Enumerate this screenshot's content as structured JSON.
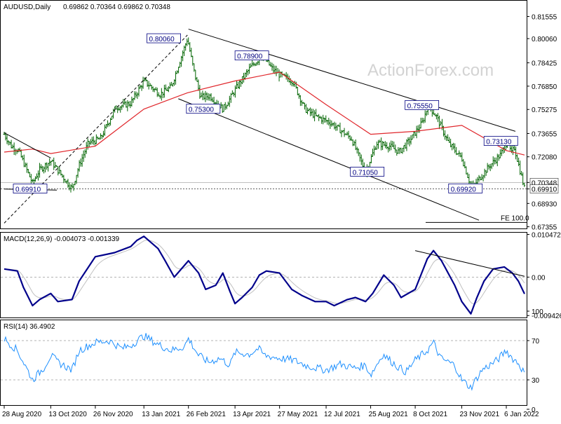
{
  "window": {
    "symbol_label": "AUDUSD,Daily",
    "ohlc_label": "0.69862 0.70364 0.69862 0.70348",
    "watermark": "ActionForex.com"
  },
  "colors": {
    "price_bar": "#006400",
    "ma_line": "#e0262b",
    "macd_line": "#00008b",
    "signal_line": "#c0c0c0",
    "rsi_line": "#1e90ff",
    "annotation_text": "#000080",
    "trendline": "#000000",
    "watermark": "#d3d3d3"
  },
  "chart_data": [
    {
      "type": "line",
      "panel": "price",
      "title": "AUDUSD,Daily",
      "subtitle": "0.69862 0.70364 0.69862 0.70348",
      "ylim": [
        0.6724,
        0.8262
      ],
      "y_ticks": [
        "0.81555",
        "0.80060",
        "0.78425",
        "0.76850",
        "0.75275",
        "0.73655",
        "0.72080",
        "0.70348",
        "0.69910",
        "0.68930",
        "0.67355"
      ],
      "highlight_ticks": [
        "0.70348",
        "0.69910"
      ],
      "x_ticks": [
        "28 Aug 2020",
        "13 Oct 2020",
        "26 Nov 2020",
        "13 Jan 2021",
        "26 Feb 2021",
        "13 Apr 2021",
        "27 May 2021",
        "12 Jul 2021",
        "25 Aug 2021",
        "8 Oct 2021",
        "23 Nov 2021",
        "6 Jan 2022"
      ],
      "price_anchors": {
        "x": [
          "28 Aug 2020",
          "4 Sep 2020",
          "11 Sep 2020",
          "25 Sep 2020",
          "2 Oct 2020",
          "13 Oct 2020",
          "3 Nov 2020",
          "10 Nov 2020",
          "19 Nov 2020",
          "1 Dec 2020",
          "16 Dec 2020",
          "31 Dec 2020",
          "13 Jan 2021",
          "29 Jan 2021",
          "9 Feb 2021",
          "25 Feb 2021",
          "3 Mar 2021",
          "10 Mar 2021",
          "19 Mar 2021",
          "1 Apr 2021",
          "8 Apr 2021",
          "13 Apr 2021",
          "28 Apr 2021",
          "10 May 2021",
          "20 May 2021",
          "27 May 2021",
          "9 Jun 2021",
          "21 Jun 2021",
          "2 Jul 2021",
          "16 Jul 2021",
          "6 Aug 2021",
          "20 Aug 2021",
          "31 Aug 2021",
          "13 Sep 2021",
          "22 Sep 2021",
          "4 Oct 2021",
          "15 Oct 2021",
          "21 Oct 2021",
          "29 Oct 2021",
          "10 Nov 2021",
          "23 Nov 2021",
          "3 Dec 2021",
          "10 Dec 2021",
          "21 Dec 2021",
          "31 Dec 2021",
          "7 Jan 2022",
          "11 Jan 2022",
          "14 Jan 2022",
          "24 Jan 2022"
        ],
        "y": [
          0.736,
          0.728,
          0.725,
          0.703,
          0.712,
          0.718,
          0.6991,
          0.715,
          0.73,
          0.733,
          0.754,
          0.757,
          0.772,
          0.763,
          0.768,
          0.8006,
          0.78,
          0.761,
          0.762,
          0.753,
          0.76,
          0.766,
          0.781,
          0.789,
          0.78,
          0.776,
          0.772,
          0.753,
          0.748,
          0.744,
          0.733,
          0.7105,
          0.73,
          0.728,
          0.724,
          0.733,
          0.744,
          0.7555,
          0.748,
          0.73,
          0.72,
          0.6992,
          0.706,
          0.715,
          0.722,
          0.7313,
          0.723,
          0.727,
          0.6991
        ]
      },
      "series": [
        {
          "name": "",
          "x": [
            "28 Aug 2020",
            "25 Sep 2020",
            "13 Oct 2020",
            "26 Nov 2020",
            "13 Jan 2021",
            "25 Feb 2021",
            "13 Apr 2021",
            "27 May 2021",
            "12 Jul 2021",
            "25 Aug 2021",
            "8 Oct 2021",
            "23 Nov 2021",
            "6 Jan 2022",
            "24 Jan 2022"
          ],
          "y": [
            0.724,
            0.726,
            0.723,
            0.728,
            0.753,
            0.764,
            0.772,
            0.778,
            0.756,
            0.736,
            0.738,
            0.742,
            0.725,
            0.722
          ]
        }
      ],
      "annotations": [
        "0.80060",
        "0.78900",
        "0.75300",
        "0.71050",
        "0.75550",
        "0.73130",
        "0.69920",
        "0.69910"
      ],
      "fe_label": "FE 100.0"
    },
    {
      "type": "line",
      "panel": "macd",
      "title": "MACD(12,26,9) -0.004073 -0.001339",
      "ylim": [
        -0.0099,
        0.0109
      ],
      "y_ticks": [
        "0.010472",
        "0.00",
        "-0.009426"
      ],
      "series": [
        {
          "name": "",
          "x": [
            "28 Aug 2020",
            "10 Sep 2020",
            "16 Sep 2020",
            "25 Sep 2020",
            "2 Oct 2020",
            "13 Oct 2020",
            "20 Oct 2020",
            "3 Nov 2020",
            "10 Nov 2020",
            "26 Nov 2020",
            "15 Dec 2020",
            "31 Dec 2020",
            "6 Jan 2021",
            "13 Jan 2021",
            "27 Jan 2021",
            "3 Feb 2021",
            "12 Feb 2021",
            "26 Feb 2021",
            "8 Mar 2021",
            "15 Mar 2021",
            "25 Mar 2021",
            "1 Apr 2021",
            "8 Apr 2021",
            "13 Apr 2021",
            "20 Apr 2021",
            "30 Apr 2021",
            "7 May 2021",
            "14 May 2021",
            "27 May 2021",
            "8 Jun 2021",
            "18 Jun 2021",
            "1 Jul 2021",
            "12 Jul 2021",
            "20 Jul 2021",
            "2 Aug 2021",
            "10 Aug 2021",
            "20 Aug 2021",
            "27 Aug 2021",
            "7 Sep 2021",
            "17 Sep 2021",
            "24 Sep 2021",
            "8 Oct 2021",
            "20 Oct 2021",
            "26 Oct 2021",
            "3 Nov 2021",
            "16 Nov 2021",
            "23 Nov 2021",
            "2 Dec 2021",
            "8 Dec 2021",
            "15 Dec 2021",
            "24 Dec 2021",
            "4 Jan 2022",
            "12 Jan 2022",
            "18 Jan 2022",
            "24 Jan 2022"
          ],
          "y": [
            0.002,
            0.0015,
            -0.0025,
            -0.007,
            -0.0055,
            -0.004,
            -0.006,
            -0.0055,
            -0.001,
            0.005,
            0.006,
            0.0075,
            0.009,
            0.01,
            0.007,
            0.004,
            0.0,
            0.004,
            0.001,
            -0.003,
            -0.002,
            0.001,
            -0.0035,
            -0.0065,
            -0.005,
            -0.0025,
            0.0005,
            0.0015,
            0.001,
            -0.003,
            -0.0045,
            -0.006,
            -0.006,
            -0.007,
            -0.0055,
            -0.005,
            -0.006,
            -0.004,
            0.0005,
            -0.002,
            -0.005,
            -0.003,
            0.0045,
            0.0065,
            0.004,
            -0.002,
            -0.006,
            -0.009,
            -0.005,
            -0.001,
            0.002,
            0.0025,
            0.001,
            -0.001,
            -0.0041
          ]
        }
      ]
    },
    {
      "type": "line",
      "panel": "rsi",
      "title": "RSI(14) 36.4902",
      "ylim": [
        0,
        100
      ],
      "y_ticks": [
        "100",
        "70",
        "30",
        "0"
      ],
      "series": [
        {
          "name": "",
          "x": [
            "28 Aug 2020",
            "10 Sep 2020",
            "16 Sep 2020",
            "25 Sep 2020",
            "6 Oct 2020",
            "13 Oct 2020",
            "20 Oct 2020",
            "3 Nov 2020",
            "10 Nov 2020",
            "26 Nov 2020",
            "10 Dec 2020",
            "22 Dec 2020",
            "31 Dec 2020",
            "13 Jan 2021",
            "27 Jan 2021",
            "9 Feb 2021",
            "22 Feb 2021",
            "26 Feb 2021",
            "8 Mar 2021",
            "18 Mar 2021",
            "29 Mar 2021",
            "8 Apr 2021",
            "13 Apr 2021",
            "27 Apr 2021",
            "6 May 2021",
            "12 May 2021",
            "27 May 2021",
            "10 Jun 2021",
            "24 Jun 2021",
            "12 Jul 2021",
            "26 Jul 2021",
            "9 Aug 2021",
            "20 Aug 2021",
            "25 Aug 2021",
            "6 Sep 2021",
            "20 Sep 2021",
            "29 Sep 2021",
            "8 Oct 2021",
            "20 Oct 2021",
            "26 Oct 2021",
            "2 Nov 2021",
            "16 Nov 2021",
            "23 Nov 2021",
            "2 Dec 2021",
            "13 Dec 2021",
            "28 Dec 2021",
            "6 Jan 2022",
            "12 Jan 2022",
            "18 Jan 2022",
            "24 Jan 2022"
          ],
          "y": [
            72,
            60,
            48,
            30,
            42,
            55,
            48,
            40,
            60,
            68,
            70,
            62,
            65,
            75,
            66,
            60,
            64,
            72,
            55,
            48,
            52,
            45,
            58,
            56,
            62,
            55,
            52,
            50,
            44,
            40,
            46,
            42,
            45,
            35,
            56,
            44,
            38,
            50,
            60,
            68,
            52,
            45,
            30,
            22,
            40,
            50,
            60,
            52,
            47,
            36.5
          ]
        }
      ]
    }
  ]
}
